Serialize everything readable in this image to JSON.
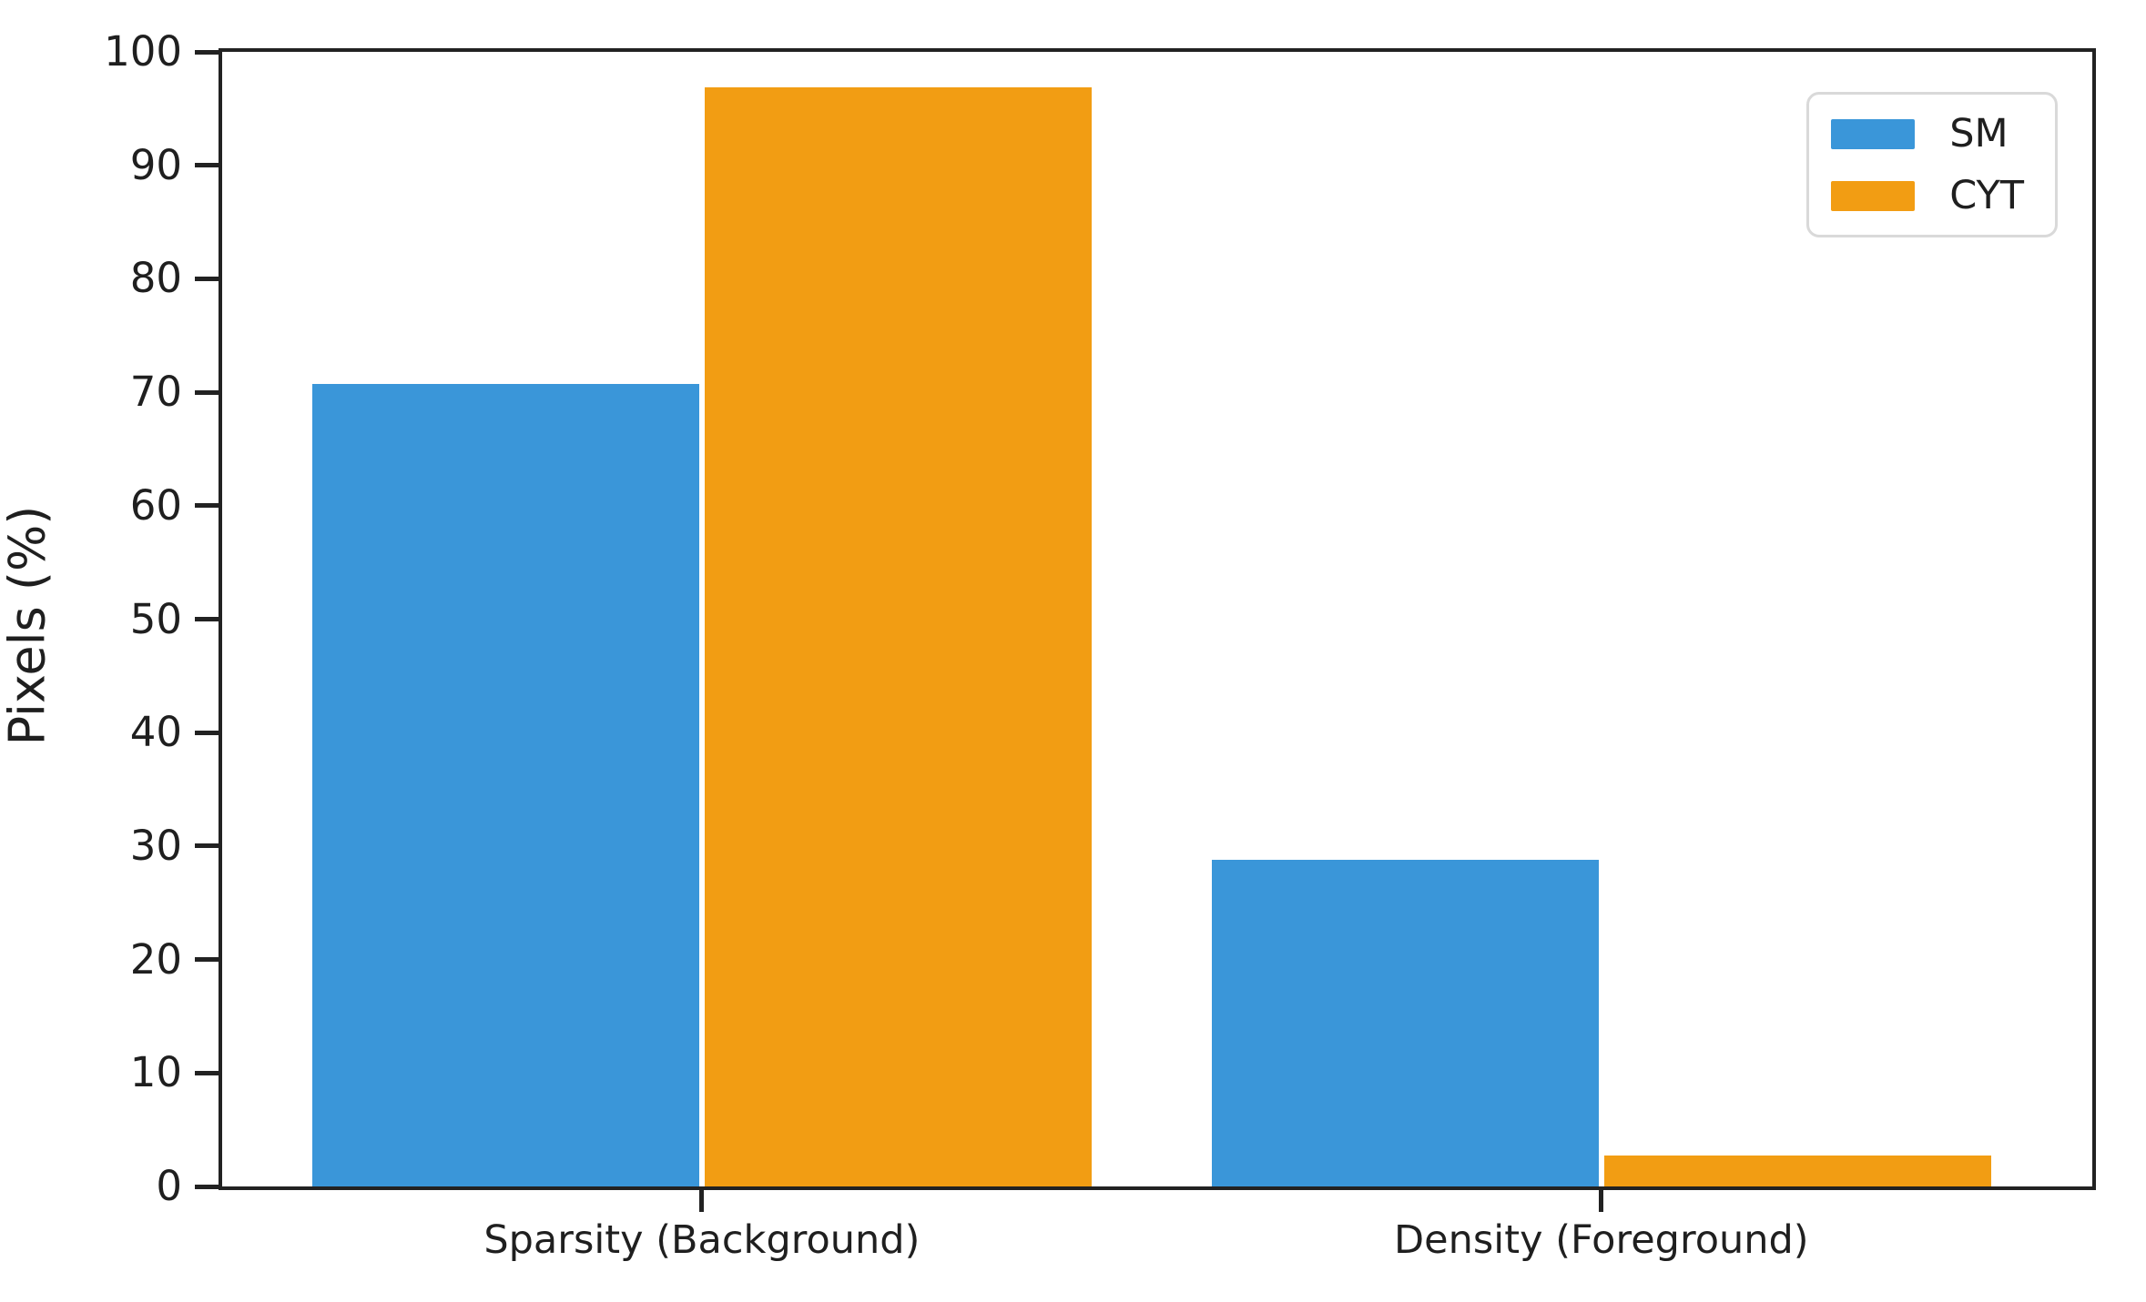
{
  "chart_data": {
    "type": "bar",
    "title": "",
    "xlabel": "",
    "ylabel": "Pixels (%)",
    "categories": [
      "Sparsity (Background)",
      "Density (Foreground)"
    ],
    "series": [
      {
        "name": "SM",
        "color": "#3A96D9",
        "values": [
          70.7,
          28.8
        ]
      },
      {
        "name": "CYT",
        "color": "#F29D13",
        "values": [
          96.9,
          2.7
        ]
      }
    ],
    "ylim": [
      0,
      100
    ],
    "yticks": [
      0,
      10,
      20,
      30,
      40,
      50,
      60,
      70,
      80,
      90,
      100
    ],
    "grid": false,
    "legend_position": "upper right",
    "legend_items": [
      {
        "label": "SM",
        "color": "#3A96D9"
      },
      {
        "label": "CYT",
        "color": "#F29D13"
      }
    ]
  }
}
